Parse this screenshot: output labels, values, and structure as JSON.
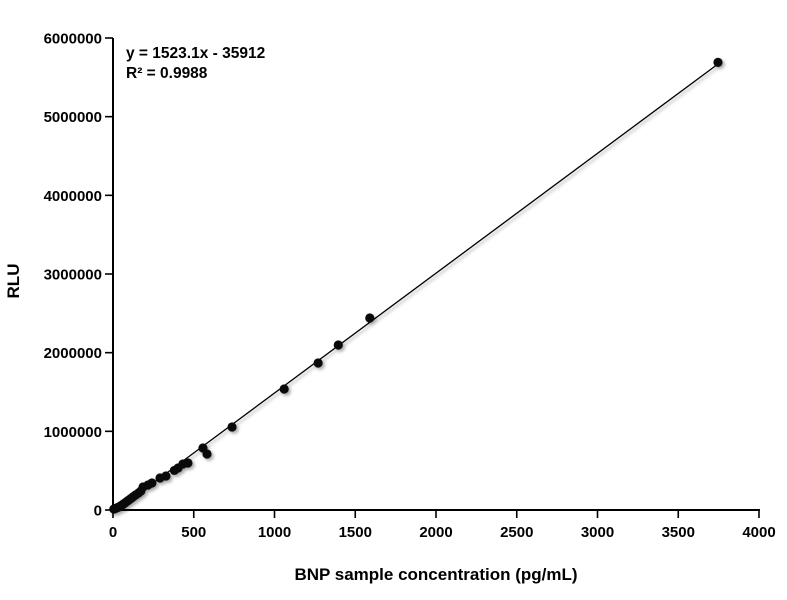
{
  "chart_data": {
    "type": "scatter",
    "title": "",
    "xlabel": "BNP sample concentration (pg/mL)",
    "ylabel": "RLU",
    "xlim": [
      0,
      4000
    ],
    "ylim": [
      0,
      6000000
    ],
    "x_ticks": [
      0,
      500,
      1000,
      1500,
      2000,
      2500,
      3000,
      3500,
      4000
    ],
    "y_ticks": [
      0,
      1000000,
      2000000,
      3000000,
      4000000,
      5000000,
      6000000
    ],
    "grid": false,
    "legend": null,
    "annotation_line1": "y = 1523.1x - 35912",
    "annotation_line2": "R² = 0.9988",
    "trendline": {
      "slope": 1523.1,
      "intercept": -35912,
      "x_start": 23.6,
      "x_end": 3746
    },
    "marker_color": "#0a0a0a",
    "line_color": "#000000",
    "axis_color": "#000000",
    "background_color": "#ffffff",
    "points": [
      [
        5,
        12000
      ],
      [
        12,
        17000
      ],
      [
        18,
        22000
      ],
      [
        25,
        28000
      ],
      [
        32,
        34000
      ],
      [
        40,
        42000
      ],
      [
        48,
        52000
      ],
      [
        57,
        64000
      ],
      [
        66,
        78000
      ],
      [
        76,
        92000
      ],
      [
        87,
        110000
      ],
      [
        99,
        128000
      ],
      [
        112,
        148000
      ],
      [
        126,
        170000
      ],
      [
        141,
        193000
      ],
      [
        158,
        216000
      ],
      [
        172,
        240000
      ],
      [
        186,
        292000
      ],
      [
        217,
        318000
      ],
      [
        241,
        343000
      ],
      [
        291,
        407000
      ],
      [
        328,
        432000
      ],
      [
        380,
        503000
      ],
      [
        403,
        534000
      ],
      [
        433,
        585000
      ],
      [
        464,
        597000
      ],
      [
        557,
        788000
      ],
      [
        582,
        712000
      ],
      [
        737,
        1055000
      ],
      [
        1060,
        1538000
      ],
      [
        1270,
        1869000
      ],
      [
        1395,
        2097000
      ],
      [
        1590,
        2441000
      ],
      [
        3746,
        5690000
      ]
    ]
  }
}
